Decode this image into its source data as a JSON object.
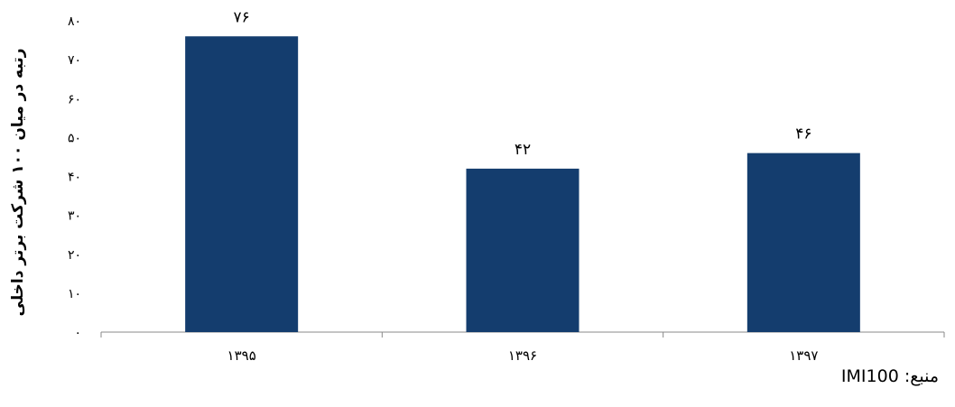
{
  "chart_data": {
    "type": "bar",
    "categories": [
      "۱۳۹۵",
      "۱۳۹۶",
      "۱۳۹۷"
    ],
    "values": [
      76,
      42,
      46
    ],
    "data_labels": [
      "۷۶",
      "۴۲",
      "۴۶"
    ],
    "ylabel": "رتبه در میان ۱۰۰ شرکت برتر داخلی",
    "xlabel": "",
    "ylim": [
      0,
      80
    ],
    "yticks": [
      0,
      10,
      20,
      30,
      40,
      50,
      60,
      70,
      80
    ],
    "ytick_labels": [
      "۰",
      "۱۰",
      "۲۰",
      "۳۰",
      "۴۰",
      "۵۰",
      "۶۰",
      "۷۰",
      "۸۰"
    ],
    "grid": false,
    "bar_color": "#143D6E"
  },
  "source": "منبع: IMI100"
}
